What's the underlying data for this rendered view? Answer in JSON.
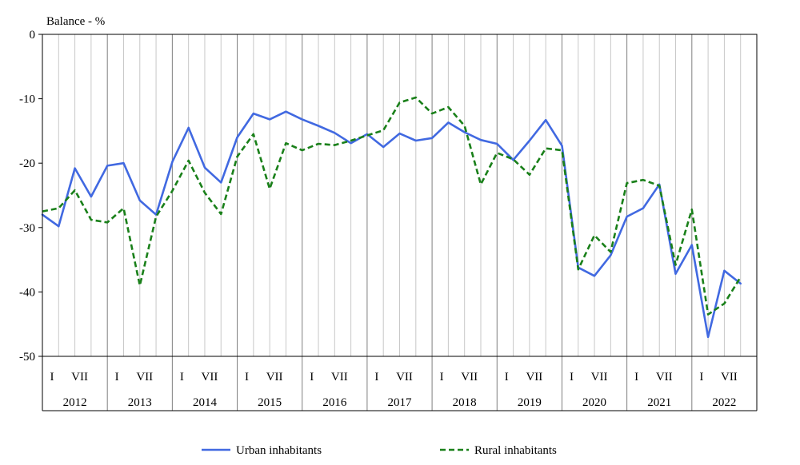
{
  "chart_data": {
    "type": "line",
    "title": "Balance - %",
    "ylim": [
      -50,
      0
    ],
    "yticks": [
      0,
      -10,
      -20,
      -30,
      -40,
      -50
    ],
    "grid": "vertical",
    "legend_position": "bottom",
    "years": [
      "2012",
      "2013",
      "2014",
      "2015",
      "2016",
      "2017",
      "2018",
      "2019",
      "2020",
      "2021",
      "2022"
    ],
    "month_labels": [
      "I",
      "VII"
    ],
    "x_unit": "months since January 2012",
    "series": [
      {
        "name": "Urban inhabitants",
        "color": "#4169E1",
        "style": "solid",
        "x": [
          0,
          3,
          6,
          9,
          12,
          15,
          18,
          21,
          24,
          27,
          30,
          33,
          36,
          39,
          42,
          45,
          48,
          51,
          54,
          57,
          60,
          63,
          66,
          69,
          72,
          75,
          78,
          81,
          84,
          87,
          90,
          93,
          96,
          99,
          102,
          105,
          108,
          111,
          114,
          117,
          120,
          123,
          126,
          129
        ],
        "values": [
          -28.0,
          -29.8,
          -20.8,
          -25.2,
          -20.4,
          -20.0,
          -25.8,
          -28.0,
          -19.8,
          -14.5,
          -20.7,
          -23.0,
          -16.0,
          -12.3,
          -13.2,
          -12.0,
          -13.2,
          -14.2,
          -15.3,
          -16.9,
          -15.5,
          -17.5,
          -15.4,
          -16.5,
          -16.1,
          -13.7,
          -15.2,
          -16.4,
          -17.0,
          -19.5,
          -16.5,
          -13.3,
          -17.3,
          -36.2,
          -37.5,
          -34.3,
          -28.3,
          -27.0,
          -23.3,
          -37.2,
          -32.7,
          -47.0,
          -36.7,
          -38.7
        ]
      },
      {
        "name": "Rural inhabitants",
        "color": "#1A801A",
        "style": "dashed",
        "x": [
          0,
          3,
          6,
          9,
          12,
          15,
          18,
          21,
          24,
          27,
          30,
          33,
          36,
          39,
          42,
          45,
          48,
          51,
          54,
          57,
          60,
          63,
          66,
          69,
          72,
          75,
          78,
          81,
          84,
          87,
          90,
          93,
          96,
          99,
          102,
          105,
          108,
          111,
          114,
          117,
          120,
          123,
          126,
          129
        ],
        "values": [
          -27.5,
          -27.0,
          -24.2,
          -28.8,
          -29.2,
          -27.0,
          -39.0,
          -28.3,
          -24.3,
          -19.6,
          -24.6,
          -27.9,
          -19.0,
          -15.5,
          -24.0,
          -16.9,
          -18.0,
          -17.0,
          -17.2,
          -16.5,
          -15.7,
          -14.9,
          -10.6,
          -9.8,
          -12.3,
          -11.3,
          -14.2,
          -23.3,
          -18.4,
          -19.4,
          -21.8,
          -17.7,
          -18.0,
          -36.5,
          -31.2,
          -33.8,
          -23.1,
          -22.6,
          -23.5,
          -35.8,
          -27.2,
          -43.5,
          -41.8,
          -37.7
        ]
      }
    ]
  }
}
